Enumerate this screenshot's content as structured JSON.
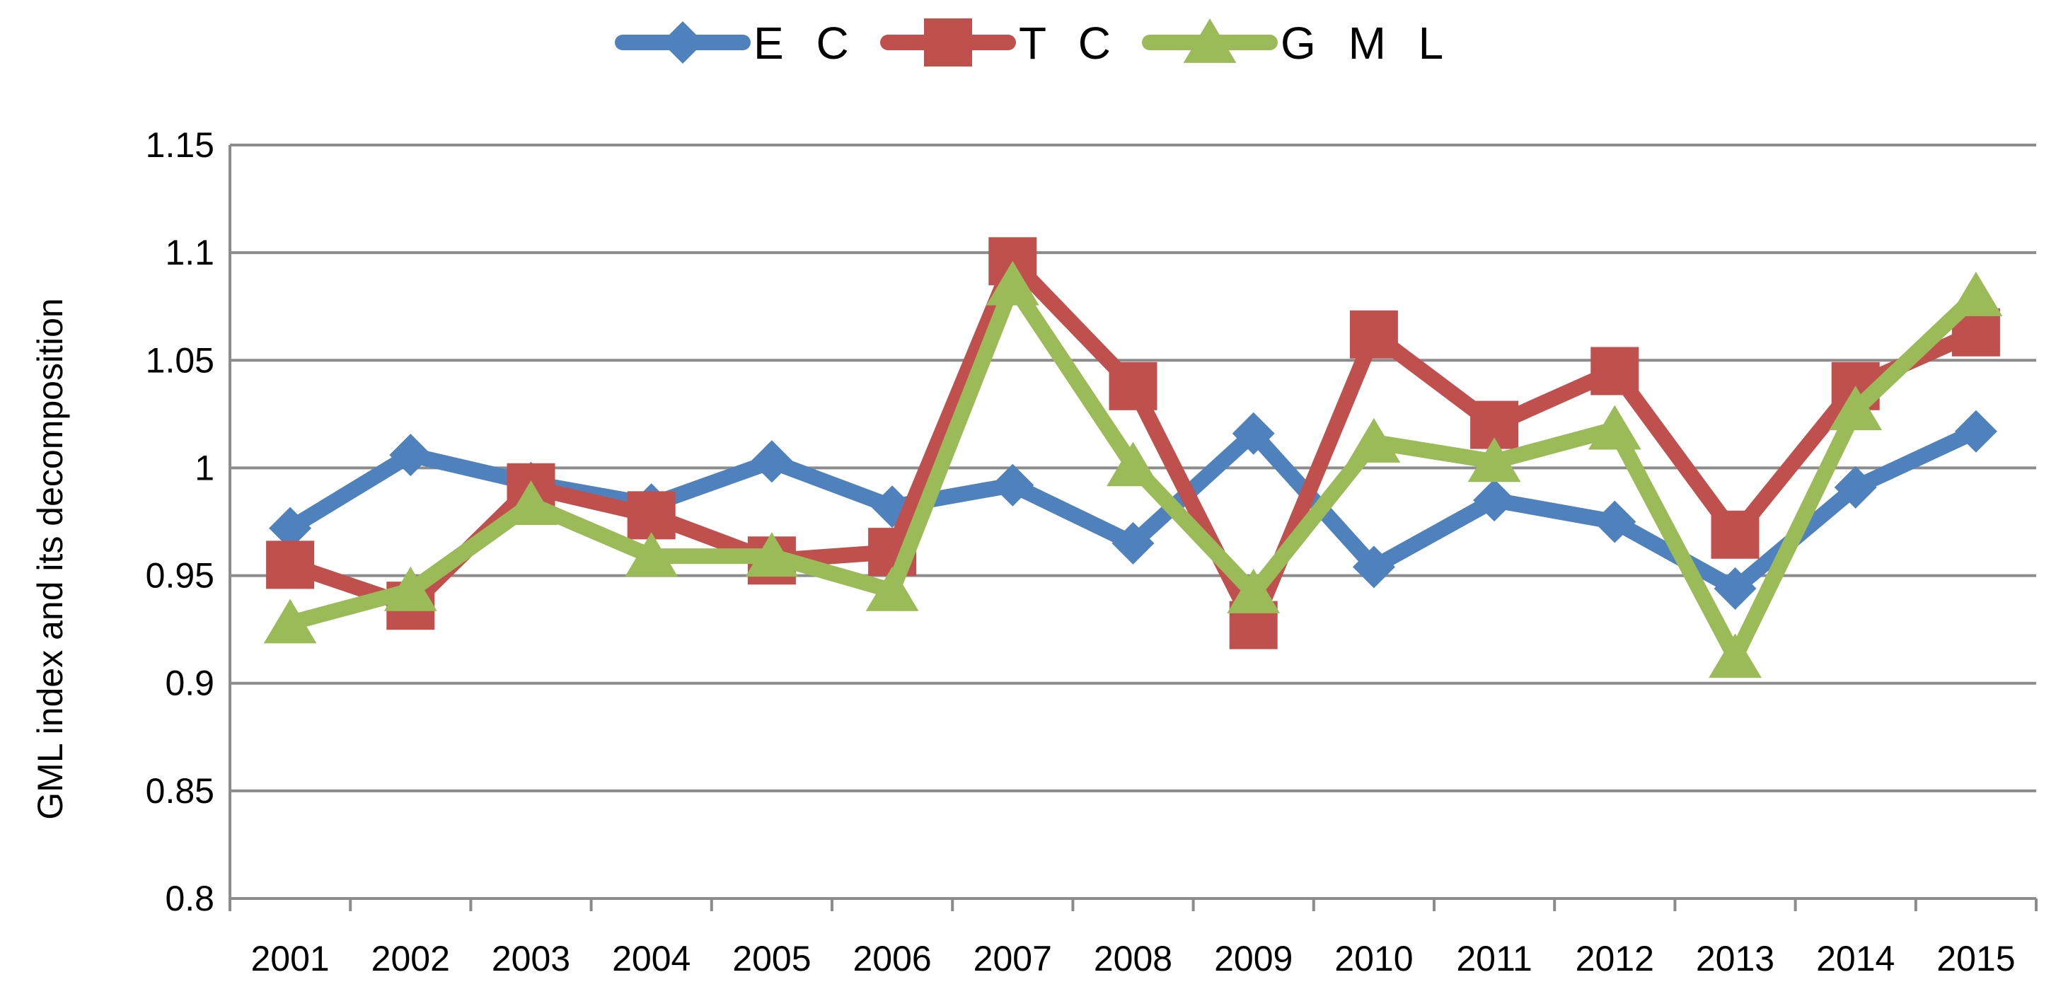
{
  "chart_data": {
    "type": "line",
    "title": "",
    "xlabel": "",
    "ylabel": "GML index and its decomposition",
    "categories": [
      "2001",
      "2002",
      "2003",
      "2004",
      "2005",
      "2006",
      "2007",
      "2008",
      "2009",
      "2010",
      "2011",
      "2012",
      "2013",
      "2014",
      "2015"
    ],
    "ylim": [
      0.8,
      1.15
    ],
    "yticks": [
      0.8,
      0.85,
      0.9,
      0.95,
      1,
      1.05,
      1.1,
      1.15
    ],
    "ytick_labels": [
      "0.8",
      "0.85",
      "0.9",
      "0.95",
      "1",
      "1.05",
      "1.1",
      "1.15"
    ],
    "grid": true,
    "legend_position": "top-center",
    "series": [
      {
        "name": "E C",
        "color": "#4f81bd",
        "marker": "diamond",
        "values": [
          0.972,
          1.006,
          0.993,
          0.983,
          1.003,
          0.982,
          0.992,
          0.965,
          1.016,
          0.954,
          0.985,
          0.975,
          0.944,
          0.991,
          1.017
        ]
      },
      {
        "name": "T C",
        "color": "#c0504d",
        "marker": "square",
        "values": [
          0.955,
          0.936,
          0.991,
          0.978,
          0.957,
          0.961,
          1.096,
          1.038,
          0.927,
          1.062,
          1.02,
          1.045,
          0.969,
          1.038,
          1.063
        ]
      },
      {
        "name": "G M L",
        "color": "#9bbb59",
        "marker": "triangle",
        "values": [
          0.928,
          0.943,
          0.983,
          0.959,
          0.959,
          0.943,
          1.085,
          1.001,
          0.942,
          1.012,
          1.003,
          1.018,
          0.912,
          1.027,
          1.08
        ]
      }
    ]
  }
}
